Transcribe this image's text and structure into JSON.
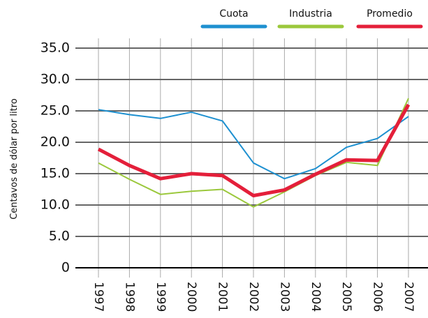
{
  "chart_data": {
    "type": "line",
    "y_label": "Centavos de dólar por litro",
    "categories": [
      "1997",
      "1998",
      "1999",
      "2000",
      "2001",
      "2002",
      "2003",
      "2004",
      "2005",
      "2006",
      "2007"
    ],
    "series": [
      {
        "name": "Cuota",
        "color": "#1e90d0",
        "width": 2,
        "values": [
          25.2,
          24.4,
          23.8,
          24.8,
          23.4,
          16.7,
          14.2,
          15.8,
          19.2,
          20.6,
          24.1
        ]
      },
      {
        "name": "Industria",
        "color": "#9bc83c",
        "width": 2,
        "values": [
          16.7,
          14.1,
          11.7,
          12.2,
          12.5,
          9.7,
          12.1,
          14.7,
          16.8,
          16.3,
          27.0
        ]
      },
      {
        "name": "Promedio",
        "color": "#e41f3a",
        "width": 5,
        "values": [
          18.9,
          16.3,
          14.2,
          15.0,
          14.7,
          11.5,
          12.4,
          14.9,
          17.2,
          17.1,
          26.0
        ]
      }
    ],
    "ylim": [
      0,
      35
    ],
    "yticks": [
      0,
      {
        "value": 5,
        "label": "5.0"
      },
      {
        "value": 10,
        "label": "10.0"
      },
      {
        "value": 15,
        "label": "15.0"
      },
      {
        "value": 20,
        "label": "20.0"
      },
      {
        "value": 25,
        "label": "25.0"
      },
      {
        "value": 30,
        "label": "30.0"
      },
      {
        "value": 35,
        "label": "35.0"
      }
    ],
    "grid": true
  }
}
